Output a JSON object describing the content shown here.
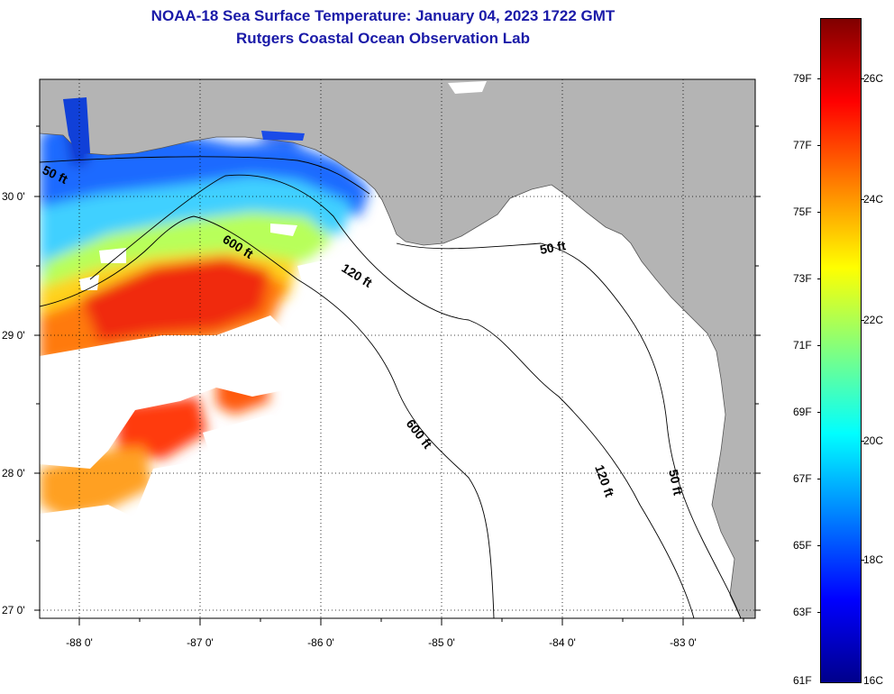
{
  "title": {
    "line1": "NOAA-18 Sea Surface Temperature:  January 04, 2023 1722 GMT",
    "line2": "Rutgers Coastal Ocean Observation Lab"
  },
  "map": {
    "lat_labels": [
      "30 0'",
      "29 0'",
      "28 0'",
      "27 0'"
    ],
    "lon_labels": [
      "-88 0'",
      "-87 0'",
      "-86 0'",
      "-85 0'",
      "-84 0'",
      "-83 0'"
    ],
    "depth_labels": [
      "50 ft",
      "600 ft",
      "120 ft",
      "50 ft",
      "600 ft",
      "120 ft",
      "50 ft"
    ],
    "colors": {
      "land": "#b4b4b4",
      "cloud": "#ffffff",
      "grid": "#000000"
    }
  },
  "colorbar": {
    "fahrenheit_labels": [
      "79F",
      "77F",
      "75F",
      "73F",
      "71F",
      "69F",
      "67F",
      "65F",
      "63F",
      "61F"
    ],
    "celsius_labels": [
      "26C",
      "24C",
      "22C",
      "20C",
      "18C",
      "16C"
    ],
    "gradient": [
      "#00008b",
      "#0000ff",
      "#0080ff",
      "#00ffff",
      "#80ff80",
      "#ffff00",
      "#ff8000",
      "#ff0000",
      "#800000"
    ]
  }
}
